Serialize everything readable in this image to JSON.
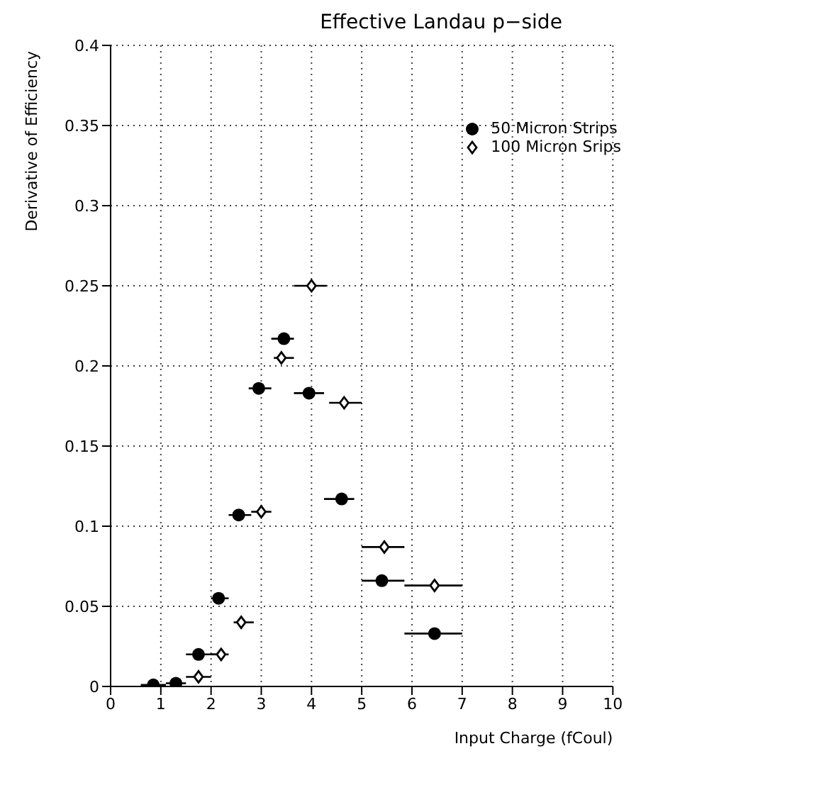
{
  "chart_data": {
    "type": "scatter",
    "title": "Effective Landau p−side",
    "xlabel": "Input Charge (fCoul)",
    "ylabel": "Derivative of Efficiency",
    "xlim": [
      0,
      10
    ],
    "xticks": [
      0,
      1,
      2,
      3,
      4,
      5,
      6,
      7,
      8,
      9,
      10
    ],
    "ylim": [
      0,
      0.4
    ],
    "yticks": [
      0,
      0.05,
      0.1,
      0.15,
      0.2,
      0.25,
      0.3,
      0.35,
      0.4
    ],
    "grid": true,
    "legend": "top right",
    "series": [
      {
        "name": "50 Micron Strips",
        "color": "#000000",
        "marker": "circle",
        "x": [
          0.85,
          1.3,
          1.75,
          2.15,
          2.55,
          2.95,
          3.45,
          3.95,
          4.6,
          5.4,
          6.45
        ],
        "values": [
          0.001,
          0.002,
          0.02,
          0.055,
          0.107,
          0.186,
          0.217,
          0.183,
          0.117,
          0.066,
          0.033
        ],
        "xerrors": [
          [
            0.6,
            1.1
          ],
          [
            1.1,
            1.5
          ],
          [
            1.5,
            2.2
          ],
          [
            2.0,
            2.35
          ],
          [
            2.35,
            2.8
          ],
          [
            2.75,
            3.2
          ],
          [
            3.2,
            3.65
          ],
          [
            3.65,
            4.25
          ],
          [
            4.25,
            4.85
          ],
          [
            5.0,
            5.85
          ],
          [
            5.85,
            7.0
          ]
        ]
      },
      {
        "name": "100 Micron Srips",
        "color": "#000000",
        "marker": "diamond",
        "x": [
          1.75,
          2.2,
          2.6,
          3.0,
          3.4,
          4.0,
          4.65,
          5.45,
          6.45
        ],
        "values": [
          0.006,
          0.02,
          0.04,
          0.109,
          0.205,
          0.25,
          0.177,
          0.087,
          0.063
        ],
        "xerrors": [
          [
            1.5,
            2.0
          ],
          [
            2.0,
            2.35
          ],
          [
            2.45,
            2.85
          ],
          [
            2.8,
            3.2
          ],
          [
            3.25,
            3.65
          ],
          [
            3.65,
            4.3
          ],
          [
            4.35,
            5.0
          ],
          [
            5.0,
            5.85
          ],
          [
            5.85,
            7.0
          ]
        ]
      }
    ]
  }
}
